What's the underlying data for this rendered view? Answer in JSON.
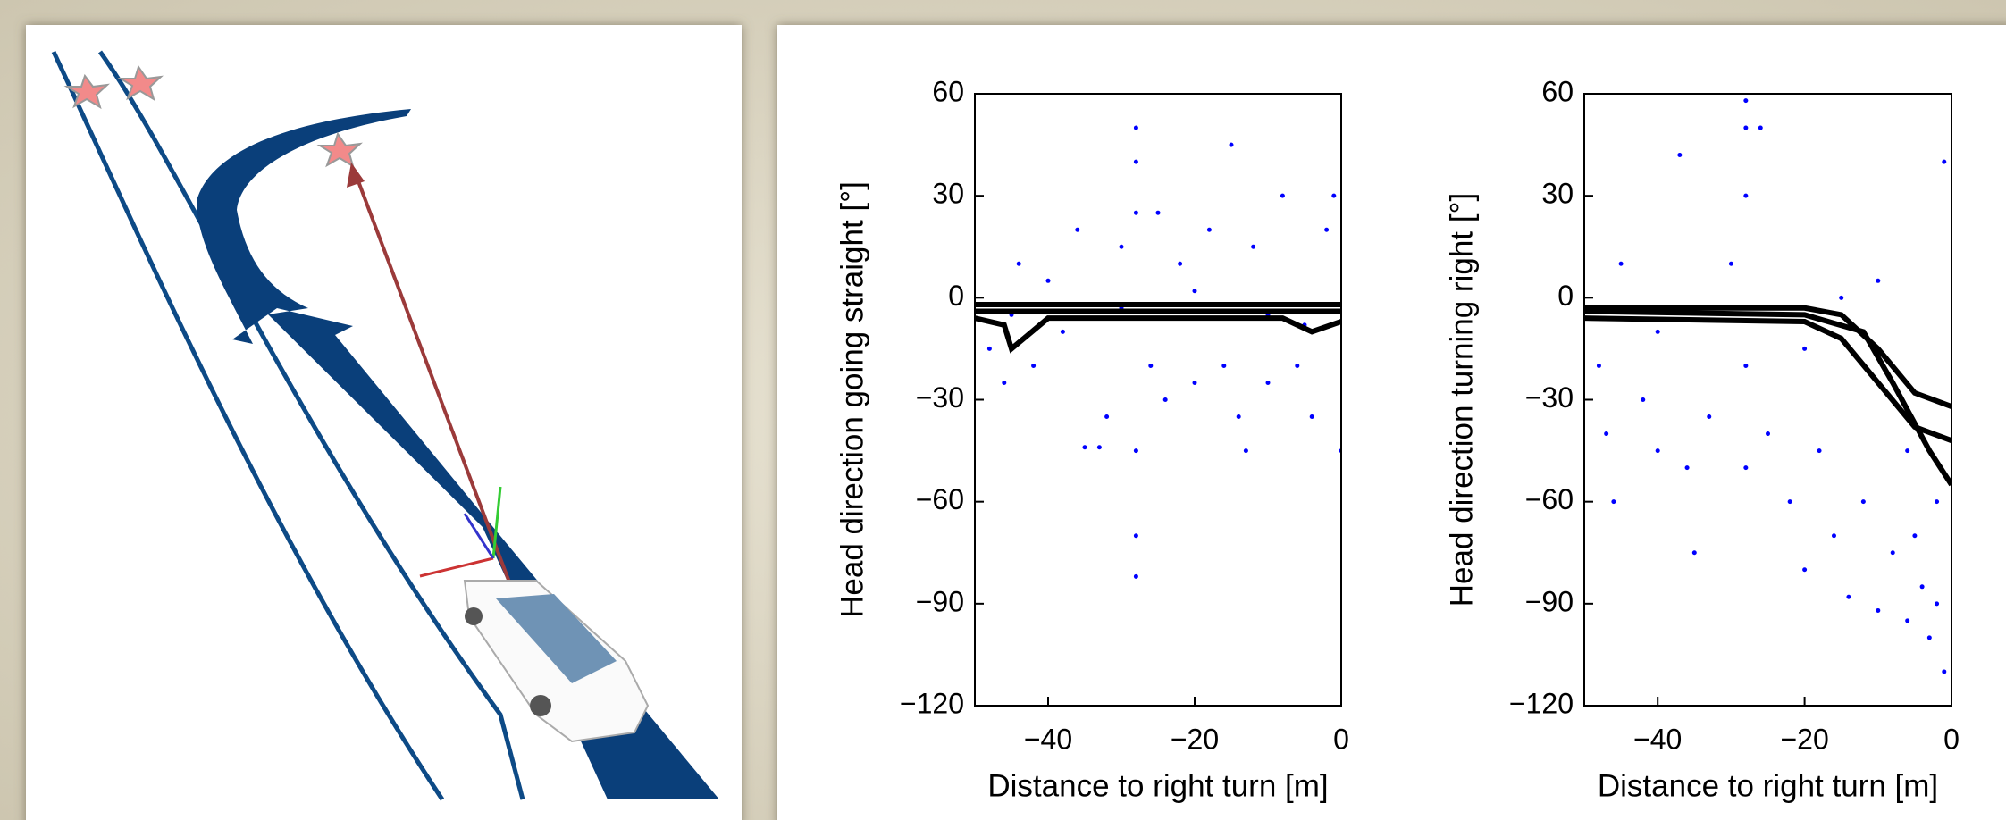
{
  "chart_data": [
    {
      "type": "scatter",
      "xlabel": "Distance to right turn [m]",
      "ylabel": "Head direction going straight [°]",
      "xlim": [
        -50,
        0
      ],
      "ylim": [
        -120,
        60
      ],
      "xticks": [
        {
          "value": -40,
          "label": "−40"
        },
        {
          "value": -20,
          "label": "−20"
        },
        0
      ],
      "yticks": [
        {
          "value": -120,
          "label": "−120"
        },
        {
          "value": -90,
          "label": "−90"
        },
        {
          "value": -60,
          "label": "−60"
        },
        {
          "value": -30,
          "label": "−30"
        },
        0,
        30,
        60
      ],
      "series": [
        {
          "color": "#0000ff",
          "x": [
            -48,
            -46,
            -44,
            -42,
            -40,
            -38,
            -36,
            -35,
            -33,
            -32,
            -30,
            -26,
            -25,
            -24,
            -22,
            -20,
            -18,
            -16,
            -15,
            -14,
            -13,
            -12,
            -10,
            -8,
            -6,
            -4,
            -2,
            -1,
            0,
            -28,
            -28,
            -28,
            -28,
            -28,
            -28,
            -45,
            -30,
            -20,
            -10,
            -5
          ],
          "values": [
            -15,
            -25,
            10,
            -20,
            5,
            -10,
            20,
            -44,
            -44,
            -35,
            15,
            -20,
            25,
            -30,
            10,
            -25,
            20,
            -20,
            45,
            -35,
            -45,
            15,
            -25,
            30,
            -20,
            -35,
            20,
            30,
            -45,
            50,
            40,
            25,
            -45,
            -70,
            -82,
            -5,
            -3,
            2,
            -5,
            -8
          ]
        },
        {
          "color": "#000000",
          "style": "line",
          "x": [
            -50,
            -40,
            -20,
            -10,
            0
          ],
          "values": [
            -2,
            -2,
            -2,
            -2,
            -2
          ]
        },
        {
          "color": "#000000",
          "style": "line",
          "x": [
            -50,
            -40,
            -20,
            -10,
            0
          ],
          "values": [
            -4,
            -4,
            -4,
            -4,
            -4
          ]
        },
        {
          "color": "#000000",
          "style": "line",
          "x": [
            -50,
            -46,
            -45,
            -40,
            -20,
            -8,
            -4,
            0
          ],
          "values": [
            -6,
            -8,
            -15,
            -6,
            -6,
            -6,
            -10,
            -7
          ]
        }
      ]
    },
    {
      "type": "scatter",
      "xlabel": "Distance to right turn [m]",
      "ylabel": "Head direction turning right [°]",
      "xlim": [
        -50,
        0
      ],
      "ylim": [
        -120,
        60
      ],
      "xticks": [
        {
          "value": -40,
          "label": "−40"
        },
        {
          "value": -20,
          "label": "−20"
        },
        0
      ],
      "yticks": [
        {
          "value": -120,
          "label": "−120"
        },
        {
          "value": -90,
          "label": "−90"
        },
        {
          "value": -60,
          "label": "−60"
        },
        {
          "value": -30,
          "label": "−30"
        },
        0,
        30,
        60
      ],
      "series": [
        {
          "color": "#0000ff",
          "x": [
            -48,
            -47,
            -46,
            -45,
            -42,
            -40,
            -37,
            -36,
            -35,
            -33,
            -30,
            -28,
            -28,
            -28,
            -28,
            -28,
            -26,
            -25,
            -22,
            -20,
            -18,
            -16,
            -14,
            -12,
            -10,
            -8,
            -6,
            -5,
            -4,
            -3,
            -2,
            -1,
            -1,
            -8,
            -20,
            -40,
            -15,
            -10,
            -6,
            -2
          ],
          "values": [
            -20,
            -40,
            -60,
            10,
            -30,
            -45,
            42,
            -50,
            -75,
            -35,
            10,
            58,
            50,
            30,
            -20,
            -50,
            50,
            -40,
            -60,
            -80,
            -45,
            -70,
            -88,
            -60,
            -92,
            -75,
            -95,
            -70,
            -85,
            -100,
            -60,
            -110,
            40,
            -30,
            -15,
            -10,
            0,
            5,
            -45,
            -90
          ]
        },
        {
          "color": "#000000",
          "style": "line",
          "x": [
            -50,
            -20,
            -15,
            -10,
            -5,
            0
          ],
          "values": [
            -3,
            -3,
            -5,
            -15,
            -28,
            -32
          ]
        },
        {
          "color": "#000000",
          "style": "line",
          "x": [
            -50,
            -20,
            -15,
            -10,
            -5,
            0
          ],
          "values": [
            -6,
            -7,
            -12,
            -25,
            -38,
            -42
          ]
        },
        {
          "color": "#000000",
          "style": "line",
          "x": [
            -50,
            -20,
            -12,
            -8,
            -3,
            0
          ],
          "values": [
            -4,
            -5,
            -10,
            -25,
            -45,
            -55
          ]
        }
      ]
    }
  ]
}
